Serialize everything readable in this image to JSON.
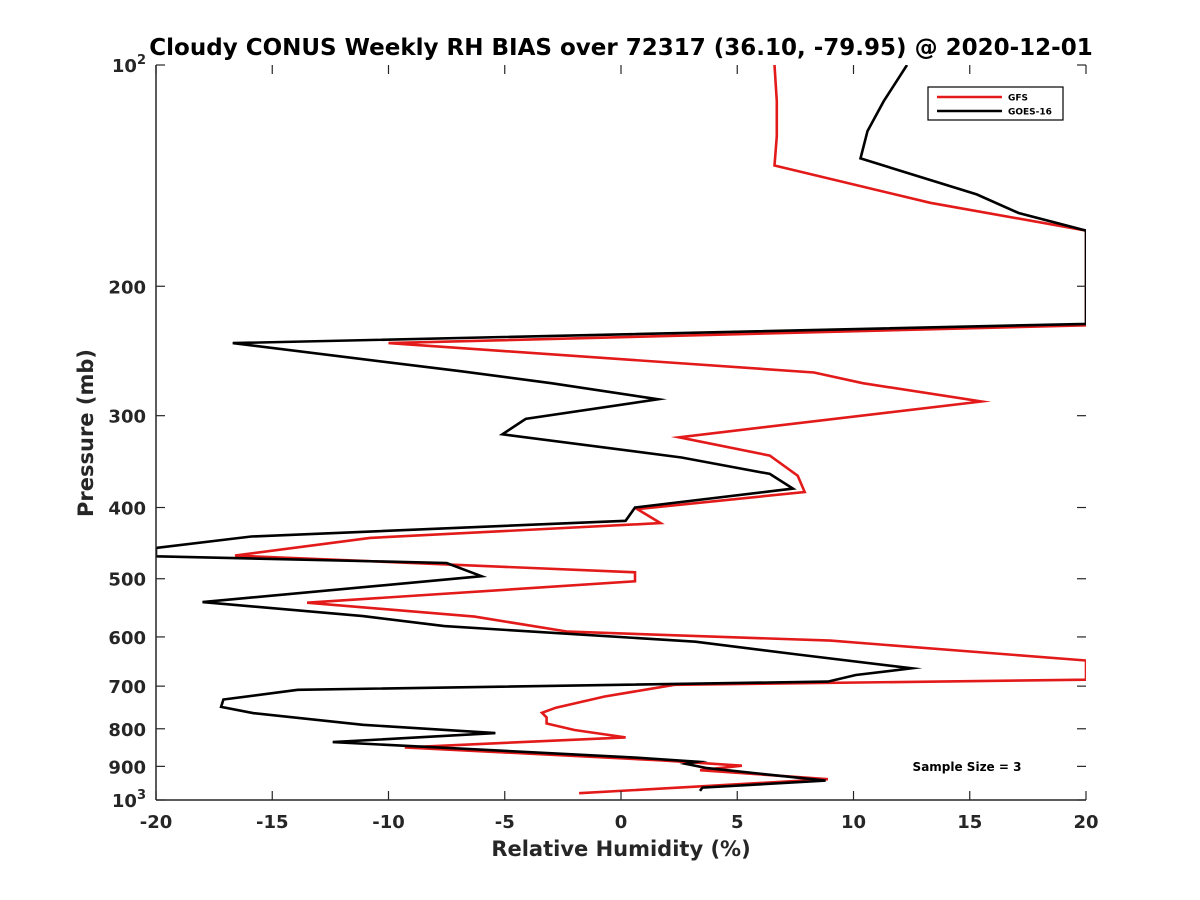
{
  "chart_data": {
    "type": "line",
    "title": "Cloudy CONUS Weekly RH BIAS over 72317 (36.10, -79.95) @ 2020-12-01",
    "xlabel": "Relative Humidity (%)",
    "ylabel": "Pressure (mb)",
    "xlim": [
      -20,
      20
    ],
    "ylim": [
      100,
      1000
    ],
    "y_scale": "log",
    "y_reversed": true,
    "grid": false,
    "legend_position": "top-right",
    "x_ticks": [
      "-20",
      "-15",
      "-10",
      "-5",
      "0",
      "5",
      "10",
      "15",
      "20"
    ],
    "y_ticks": [
      {
        "value": 100,
        "label": "10",
        "sup": "2"
      },
      {
        "value": 200,
        "label": "200",
        "sup": ""
      },
      {
        "value": 300,
        "label": "300",
        "sup": ""
      },
      {
        "value": 400,
        "label": "400",
        "sup": ""
      },
      {
        "value": 500,
        "label": "500",
        "sup": ""
      },
      {
        "value": 600,
        "label": "600",
        "sup": ""
      },
      {
        "value": 700,
        "label": "700",
        "sup": ""
      },
      {
        "value": 800,
        "label": "800",
        "sup": ""
      },
      {
        "value": 900,
        "label": "900",
        "sup": ""
      },
      {
        "value": 1000,
        "label": "10",
        "sup": "3"
      }
    ],
    "series": [
      {
        "name": "GFS",
        "color": "#e31a1a",
        "points": [
          [
            6.6,
            100
          ],
          [
            6.7,
            112
          ],
          [
            6.7,
            125
          ],
          [
            6.6,
            137
          ],
          [
            13.3,
            154
          ],
          [
            20,
            168
          ],
          [
            20,
            226
          ],
          [
            -10,
            239
          ],
          [
            8.3,
            262
          ],
          [
            10.4,
            271
          ],
          [
            15.5,
            287
          ],
          [
            2.5,
            321
          ],
          [
            6.4,
            340
          ],
          [
            7.6,
            362
          ],
          [
            7.9,
            381
          ],
          [
            0.7,
            402
          ],
          [
            1.7,
            420
          ],
          [
            -10.8,
            440
          ],
          [
            -16.6,
            465
          ],
          [
            0.6,
            490
          ],
          [
            0.6,
            504
          ],
          [
            -13.5,
            539
          ],
          [
            -6.3,
            563
          ],
          [
            -2.3,
            590
          ],
          [
            9,
            607
          ],
          [
            20,
            646
          ],
          [
            20,
            686
          ],
          [
            2.3,
            697
          ],
          [
            -0.7,
            723
          ],
          [
            -2.8,
            749
          ],
          [
            -3.4,
            761
          ],
          [
            -3.2,
            772
          ],
          [
            -3.2,
            787
          ],
          [
            -2,
            803
          ],
          [
            0.2,
            822
          ],
          [
            -9.3,
            848
          ],
          [
            1.7,
            883
          ],
          [
            5.2,
            898
          ],
          [
            3.4,
            911
          ],
          [
            8.9,
            937
          ],
          [
            -1.8,
            979
          ]
        ]
      },
      {
        "name": "GOES-16",
        "color": "#000000",
        "points": [
          [
            12.3,
            100
          ],
          [
            11.3,
            112
          ],
          [
            10.6,
            123
          ],
          [
            10.3,
            134
          ],
          [
            15.3,
            150
          ],
          [
            17.1,
            159
          ],
          [
            20,
            168
          ],
          [
            20,
            225
          ],
          [
            -16.7,
            239
          ],
          [
            -6.9,
            261
          ],
          [
            -3,
            271
          ],
          [
            1.6,
            285
          ],
          [
            -4.1,
            303
          ],
          [
            -5.1,
            318
          ],
          [
            2.6,
            342
          ],
          [
            6.4,
            360
          ],
          [
            7.4,
            377
          ],
          [
            0.6,
            400
          ],
          [
            0.2,
            417
          ],
          [
            -15.9,
            438
          ],
          [
            -20,
            454
          ],
          [
            -20,
            466
          ],
          [
            -7.5,
            476
          ],
          [
            -6,
            496
          ],
          [
            -18,
            538
          ],
          [
            -11.1,
            562
          ],
          [
            -7.6,
            580
          ],
          [
            3.2,
            609
          ],
          [
            7.6,
            634
          ],
          [
            12.5,
            662
          ],
          [
            10.1,
            676
          ],
          [
            8.9,
            690
          ],
          [
            -13.9,
            708
          ],
          [
            -17.1,
            730
          ],
          [
            -17.2,
            747
          ],
          [
            -15.8,
            762
          ],
          [
            -11.1,
            790
          ],
          [
            -5.4,
            811
          ],
          [
            -12.4,
            834
          ],
          [
            0.5,
            875
          ],
          [
            3.3,
            887
          ],
          [
            2.8,
            893
          ],
          [
            3.7,
            905
          ],
          [
            8.8,
            941
          ],
          [
            3.5,
            962
          ],
          [
            3.4,
            972
          ]
        ]
      }
    ],
    "annotations": [
      "Sample Size = 3"
    ]
  }
}
